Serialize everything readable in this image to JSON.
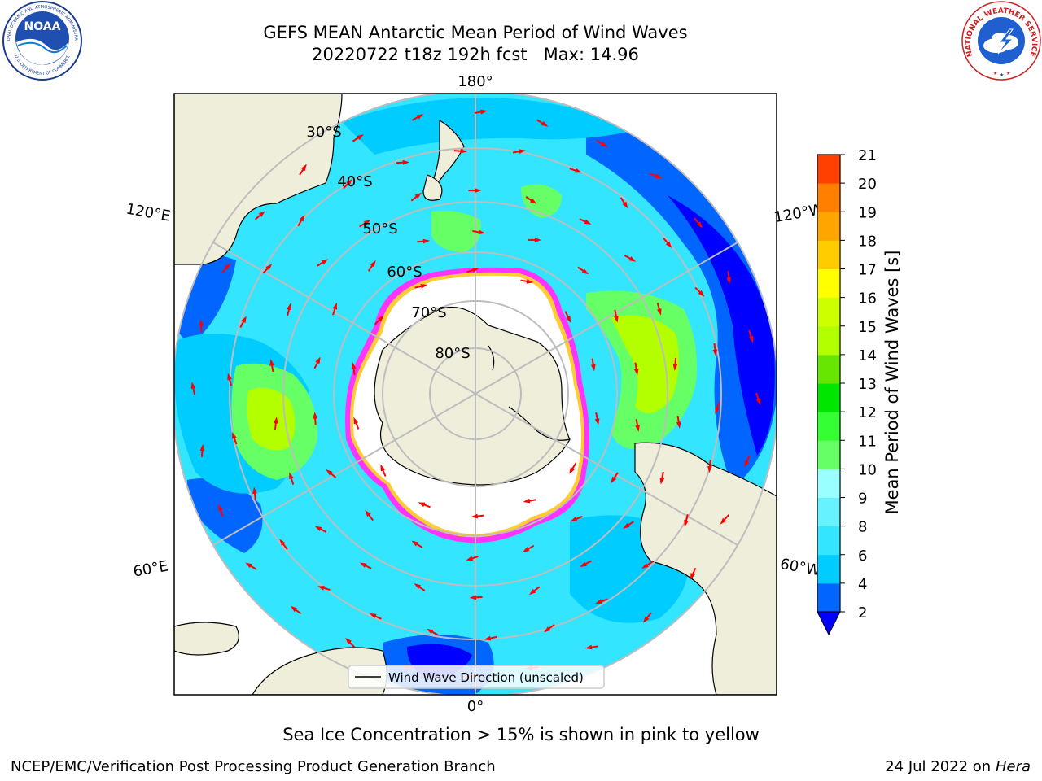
{
  "header": {
    "title_line_1": "GEFS MEAN Antarctic Mean Period of Wind Waves",
    "title_line_2": "20220722 t18z 192h fcst   Max: 14.96",
    "noaa_logo_text": "NOAA",
    "noaa_ring_text": "NATIONAL OCEANIC AND ATMOSPHERIC ADMINISTRATION",
    "noaa_ring_text_bottom": "U.S. DEPARTMENT OF COMMERCE",
    "nws_ring_text": "NATIONAL WEATHER SERVICE"
  },
  "map": {
    "projection": "south-polar-stereographic",
    "longitude_labels": {
      "top": "180°",
      "bottom": "0°",
      "left_upper": "120°E",
      "left_lower": "60°E",
      "right_upper": "120°W",
      "right_lower": "60°W"
    },
    "latitude_labels": [
      "30°S",
      "40°S",
      "50°S",
      "60°S",
      "70°S",
      "80°S"
    ],
    "legend_text": "Wind Wave Direction (unscaled)",
    "colors": {
      "land": "#efeedb",
      "ice_shelf": "#ffffff",
      "ice_edge": "#ff33ff",
      "ice_edge_inner": "#ffcc33",
      "grid": "#bdbdbd",
      "arrow": "#ff0000"
    }
  },
  "colorbar": {
    "label": "Mean Period of Wind Waves [s]",
    "ticks": [
      "2",
      "4",
      "6",
      "8",
      "9",
      "10",
      "11",
      "12",
      "13",
      "14",
      "15",
      "16",
      "17",
      "18",
      "19",
      "20",
      "21"
    ],
    "colors": [
      "#0066ff",
      "#00ccff",
      "#33e5ff",
      "#66f2ff",
      "#99ffff",
      "#66ff66",
      "#33ff33",
      "#00e600",
      "#66e600",
      "#b3ff00",
      "#ccff00",
      "#ffff00",
      "#ffcc00",
      "#ffa500",
      "#ff8000",
      "#ff4000",
      "#ff0000"
    ],
    "underflow_color": "#0000ff",
    "ticks_with_bins": [
      "2",
      "4",
      "6",
      "8",
      "9",
      "10",
      "11",
      "12",
      "13",
      "14",
      "15",
      "16",
      "17",
      "18",
      "19",
      "20",
      "21"
    ]
  },
  "footer": {
    "note": "Sea Ice Concentration > 15% is shown in pink to yellow",
    "credit": "NCEP/EMC/Verification Post Processing Product Generation Branch",
    "date_prefix": "24 Jul 2022 on ",
    "host": "Hera"
  }
}
